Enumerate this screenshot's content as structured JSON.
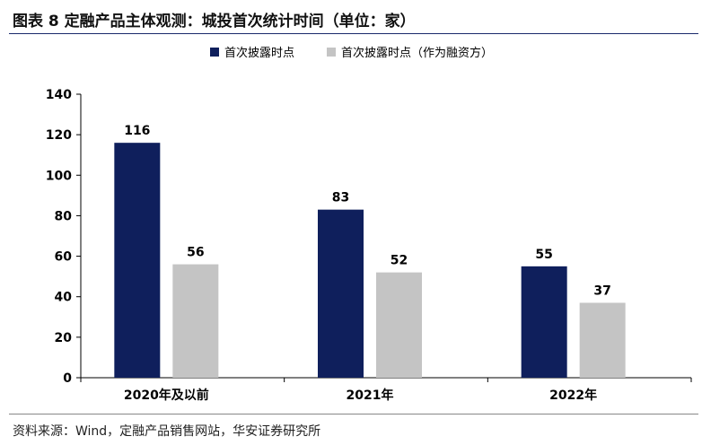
{
  "figure": {
    "title": "图表 8  定融产品主体观测：城投首次统计时间（单位：家）",
    "source": "资料来源：Wind，定融产品销售网站，华安证券研究所"
  },
  "chart_data": {
    "type": "bar",
    "categories": [
      "2020年及以前",
      "2021年",
      "2022年"
    ],
    "series": [
      {
        "name": "首次披露时点",
        "values": [
          116,
          83,
          55
        ],
        "color": "#0f1f5c"
      },
      {
        "name": "首次披露时点（作为融资方）",
        "values": [
          56,
          52,
          37
        ],
        "color": "#c4c4c4"
      }
    ],
    "ylim": [
      0,
      140
    ],
    "yticks": [
      0,
      20,
      40,
      60,
      80,
      100,
      120,
      140
    ],
    "grid": false,
    "legend": "top-center",
    "xlabel": "",
    "ylabel": ""
  }
}
